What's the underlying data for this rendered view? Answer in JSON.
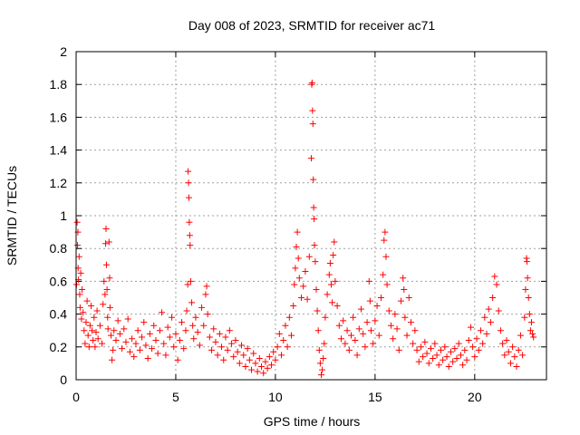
{
  "chart_data": {
    "type": "scatter",
    "title": "Day 008 of 2023, SRMTID for receiver ac71",
    "xlabel": "GPS time / hours",
    "ylabel": "SRMTID / TECUs",
    "xlim": [
      0,
      23.6
    ],
    "ylim": [
      0,
      2
    ],
    "xticks": [
      0,
      5,
      10,
      15,
      20
    ],
    "yticks": [
      0,
      0.2,
      0.4,
      0.6,
      0.8,
      1,
      1.2,
      1.4,
      1.6,
      1.8,
      2
    ],
    "ytick_labels": [
      "0",
      "0.2",
      "0.4",
      "0.6",
      "0.8",
      "1",
      "1.2",
      "1.4",
      "1.6",
      "1.8",
      "2"
    ],
    "grid": true,
    "marker": "+",
    "marker_color": "#ff0000",
    "series": [
      {
        "name": "ac71",
        "points": [
          [
            0.02,
            0.58
          ],
          [
            0.05,
            0.96
          ],
          [
            0.07,
            0.82
          ],
          [
            0.09,
            0.9
          ],
          [
            0.1,
            0.68
          ],
          [
            0.12,
            0.61
          ],
          [
            0.15,
            0.75
          ],
          [
            0.18,
            0.52
          ],
          [
            0.2,
            0.44
          ],
          [
            0.23,
            0.65
          ],
          [
            0.27,
            0.37
          ],
          [
            0.3,
            0.55
          ],
          [
            0.35,
            0.41
          ],
          [
            0.4,
            0.3
          ],
          [
            0.45,
            0.22
          ],
          [
            0.5,
            0.35
          ],
          [
            0.55,
            0.48
          ],
          [
            0.6,
            0.27
          ],
          [
            0.65,
            0.2
          ],
          [
            0.7,
            0.33
          ],
          [
            0.75,
            0.45
          ],
          [
            0.8,
            0.3
          ],
          [
            0.85,
            0.24
          ],
          [
            0.9,
            0.38
          ],
          [
            0.95,
            0.2
          ],
          [
            1.0,
            0.29
          ],
          [
            1.05,
            0.42
          ],
          [
            1.1,
            0.25
          ],
          [
            1.2,
            0.33
          ],
          [
            1.3,
            0.22
          ],
          [
            1.35,
            0.46
          ],
          [
            1.4,
            0.6
          ],
          [
            1.45,
            0.52
          ],
          [
            1.48,
            0.83
          ],
          [
            1.5,
            0.92
          ],
          [
            1.52,
            0.7
          ],
          [
            1.55,
            0.55
          ],
          [
            1.58,
            0.38
          ],
          [
            1.6,
            0.31
          ],
          [
            1.65,
            0.84
          ],
          [
            1.68,
            0.62
          ],
          [
            1.7,
            0.44
          ],
          [
            1.75,
            0.27
          ],
          [
            1.8,
            0.12
          ],
          [
            1.85,
            0.18
          ],
          [
            1.9,
            0.3
          ],
          [
            2.0,
            0.24
          ],
          [
            2.1,
            0.36
          ],
          [
            2.2,
            0.28
          ],
          [
            2.3,
            0.19
          ],
          [
            2.4,
            0.31
          ],
          [
            2.5,
            0.23
          ],
          [
            2.6,
            0.37
          ],
          [
            2.7,
            0.17
          ],
          [
            2.8,
            0.25
          ],
          [
            2.9,
            0.14
          ],
          [
            3.0,
            0.22
          ],
          [
            3.1,
            0.3
          ],
          [
            3.2,
            0.18
          ],
          [
            3.3,
            0.26
          ],
          [
            3.4,
            0.35
          ],
          [
            3.5,
            0.21
          ],
          [
            3.6,
            0.13
          ],
          [
            3.7,
            0.28
          ],
          [
            3.8,
            0.19
          ],
          [
            3.9,
            0.33
          ],
          [
            4.0,
            0.24
          ],
          [
            4.1,
            0.16
          ],
          [
            4.2,
            0.3
          ],
          [
            4.3,
            0.41
          ],
          [
            4.4,
            0.22
          ],
          [
            4.5,
            0.15
          ],
          [
            4.6,
            0.32
          ],
          [
            4.7,
            0.26
          ],
          [
            4.8,
            0.38
          ],
          [
            4.9,
            0.2
          ],
          [
            5.0,
            0.28
          ],
          [
            5.1,
            0.12
          ],
          [
            5.2,
            0.24
          ],
          [
            5.3,
            0.35
          ],
          [
            5.4,
            0.19
          ],
          [
            5.5,
            0.3
          ],
          [
            5.55,
            0.42
          ],
          [
            5.6,
            0.58
          ],
          [
            5.62,
            1.27
          ],
          [
            5.64,
            1.2
          ],
          [
            5.66,
            1.11
          ],
          [
            5.68,
            0.96
          ],
          [
            5.7,
            0.88
          ],
          [
            5.72,
            0.82
          ],
          [
            5.75,
            0.6
          ],
          [
            5.8,
            0.47
          ],
          [
            5.85,
            0.33
          ],
          [
            5.9,
            0.25
          ],
          [
            6.0,
            0.38
          ],
          [
            6.1,
            0.29
          ],
          [
            6.2,
            0.21
          ],
          [
            6.3,
            0.44
          ],
          [
            6.4,
            0.33
          ],
          [
            6.5,
            0.52
          ],
          [
            6.55,
            0.57
          ],
          [
            6.6,
            0.4
          ],
          [
            6.7,
            0.26
          ],
          [
            6.8,
            0.18
          ],
          [
            6.9,
            0.31
          ],
          [
            7.0,
            0.23
          ],
          [
            7.1,
            0.15
          ],
          [
            7.2,
            0.28
          ],
          [
            7.3,
            0.2
          ],
          [
            7.4,
            0.12
          ],
          [
            7.5,
            0.26
          ],
          [
            7.6,
            0.18
          ],
          [
            7.7,
            0.3
          ],
          [
            7.8,
            0.22
          ],
          [
            7.9,
            0.14
          ],
          [
            8.0,
            0.24
          ],
          [
            8.1,
            0.17
          ],
          [
            8.2,
            0.1
          ],
          [
            8.3,
            0.21
          ],
          [
            8.4,
            0.15
          ],
          [
            8.5,
            0.08
          ],
          [
            8.6,
            0.19
          ],
          [
            8.7,
            0.12
          ],
          [
            8.8,
            0.06
          ],
          [
            8.9,
            0.16
          ],
          [
            9.0,
            0.1
          ],
          [
            9.1,
            0.05
          ],
          [
            9.2,
            0.13
          ],
          [
            9.3,
            0.08
          ],
          [
            9.4,
            0.04
          ],
          [
            9.5,
            0.11
          ],
          [
            9.6,
            0.07
          ],
          [
            9.7,
            0.14
          ],
          [
            9.8,
            0.09
          ],
          [
            9.9,
            0.17
          ],
          [
            10.0,
            0.12
          ],
          [
            10.1,
            0.2
          ],
          [
            10.2,
            0.28
          ],
          [
            10.3,
            0.15
          ],
          [
            10.4,
            0.24
          ],
          [
            10.5,
            0.33
          ],
          [
            10.6,
            0.2
          ],
          [
            10.7,
            0.38
          ],
          [
            10.8,
            0.27
          ],
          [
            10.9,
            0.45
          ],
          [
            10.95,
            0.58
          ],
          [
            11.0,
            0.68
          ],
          [
            11.05,
            0.81
          ],
          [
            11.1,
            0.9
          ],
          [
            11.15,
            0.74
          ],
          [
            11.2,
            0.62
          ],
          [
            11.3,
            0.5
          ],
          [
            11.4,
            0.57
          ],
          [
            11.5,
            0.66
          ],
          [
            11.6,
            0.49
          ],
          [
            11.7,
            0.75
          ],
          [
            11.8,
            1.35
          ],
          [
            11.82,
            1.8
          ],
          [
            11.84,
            1.81
          ],
          [
            11.86,
            1.64
          ],
          [
            11.88,
            1.56
          ],
          [
            11.9,
            1.22
          ],
          [
            11.92,
            1.05
          ],
          [
            11.94,
            0.98
          ],
          [
            11.96,
            0.82
          ],
          [
            12.0,
            0.72
          ],
          [
            12.05,
            0.55
          ],
          [
            12.1,
            0.42
          ],
          [
            12.15,
            0.3
          ],
          [
            12.2,
            0.18
          ],
          [
            12.25,
            0.1
          ],
          [
            12.3,
            0.03
          ],
          [
            12.35,
            0.06
          ],
          [
            12.4,
            0.13
          ],
          [
            12.45,
            0.22
          ],
          [
            12.5,
            0.38
          ],
          [
            12.6,
            0.52
          ],
          [
            12.7,
            0.64
          ],
          [
            12.75,
            0.71
          ],
          [
            12.8,
            0.58
          ],
          [
            12.85,
            0.47
          ],
          [
            12.9,
            0.76
          ],
          [
            12.95,
            0.84
          ],
          [
            13.0,
            0.6
          ],
          [
            13.1,
            0.45
          ],
          [
            13.2,
            0.33
          ],
          [
            13.3,
            0.25
          ],
          [
            13.4,
            0.36
          ],
          [
            13.5,
            0.22
          ],
          [
            13.6,
            0.3
          ],
          [
            13.7,
            0.18
          ],
          [
            13.8,
            0.27
          ],
          [
            13.9,
            0.38
          ],
          [
            14.0,
            0.24
          ],
          [
            14.1,
            0.15
          ],
          [
            14.2,
            0.31
          ],
          [
            14.3,
            0.43
          ],
          [
            14.4,
            0.28
          ],
          [
            14.5,
            0.2
          ],
          [
            14.6,
            0.35
          ],
          [
            14.7,
            0.6
          ],
          [
            14.75,
            0.48
          ],
          [
            14.8,
            0.3
          ],
          [
            14.9,
            0.22
          ],
          [
            15.0,
            0.36
          ],
          [
            15.1,
            0.45
          ],
          [
            15.2,
            0.27
          ],
          [
            15.3,
            0.5
          ],
          [
            15.4,
            0.64
          ],
          [
            15.45,
            0.85
          ],
          [
            15.5,
            0.9
          ],
          [
            15.55,
            0.75
          ],
          [
            15.6,
            0.58
          ],
          [
            15.7,
            0.42
          ],
          [
            15.8,
            0.33
          ],
          [
            15.9,
            0.25
          ],
          [
            16.0,
            0.4
          ],
          [
            16.1,
            0.31
          ],
          [
            16.2,
            0.18
          ],
          [
            16.3,
            0.48
          ],
          [
            16.4,
            0.62
          ],
          [
            16.45,
            0.55
          ],
          [
            16.5,
            0.38
          ],
          [
            16.6,
            0.27
          ],
          [
            16.7,
            0.5
          ],
          [
            16.8,
            0.35
          ],
          [
            16.9,
            0.22
          ],
          [
            17.0,
            0.3
          ],
          [
            17.1,
            0.18
          ],
          [
            17.2,
            0.11
          ],
          [
            17.3,
            0.2
          ],
          [
            17.4,
            0.14
          ],
          [
            17.5,
            0.23
          ],
          [
            17.6,
            0.16
          ],
          [
            17.7,
            0.1
          ],
          [
            17.8,
            0.19
          ],
          [
            17.9,
            0.13
          ],
          [
            18.0,
            0.22
          ],
          [
            18.1,
            0.15
          ],
          [
            18.2,
            0.09
          ],
          [
            18.3,
            0.18
          ],
          [
            18.4,
            0.12
          ],
          [
            18.5,
            0.2
          ],
          [
            18.6,
            0.14
          ],
          [
            18.7,
            0.08
          ],
          [
            18.8,
            0.17
          ],
          [
            18.9,
            0.11
          ],
          [
            19.0,
            0.19
          ],
          [
            19.1,
            0.13
          ],
          [
            19.2,
            0.22
          ],
          [
            19.3,
            0.15
          ],
          [
            19.4,
            0.09
          ],
          [
            19.5,
            0.18
          ],
          [
            19.6,
            0.12
          ],
          [
            19.7,
            0.24
          ],
          [
            19.8,
            0.32
          ],
          [
            19.9,
            0.2
          ],
          [
            20.0,
            0.14
          ],
          [
            20.1,
            0.25
          ],
          [
            20.2,
            0.18
          ],
          [
            20.3,
            0.3
          ],
          [
            20.4,
            0.22
          ],
          [
            20.5,
            0.38
          ],
          [
            20.6,
            0.28
          ],
          [
            20.7,
            0.43
          ],
          [
            20.8,
            0.35
          ],
          [
            20.9,
            0.5
          ],
          [
            21.0,
            0.63
          ],
          [
            21.1,
            0.58
          ],
          [
            21.2,
            0.42
          ],
          [
            21.3,
            0.3
          ],
          [
            21.4,
            0.22
          ],
          [
            21.5,
            0.15
          ],
          [
            21.6,
            0.24
          ],
          [
            21.7,
            0.17
          ],
          [
            21.8,
            0.1
          ],
          [
            21.9,
            0.2
          ],
          [
            22.0,
            0.14
          ],
          [
            22.1,
            0.08
          ],
          [
            22.2,
            0.18
          ],
          [
            22.3,
            0.27
          ],
          [
            22.4,
            0.15
          ],
          [
            22.5,
            0.38
          ],
          [
            22.55,
            0.55
          ],
          [
            22.6,
            0.74
          ],
          [
            22.62,
            0.72
          ],
          [
            22.65,
            0.62
          ],
          [
            22.7,
            0.5
          ],
          [
            22.75,
            0.4
          ],
          [
            22.8,
            0.3
          ],
          [
            22.85,
            0.35
          ],
          [
            22.9,
            0.28
          ],
          [
            22.95,
            0.26
          ]
        ]
      }
    ]
  }
}
